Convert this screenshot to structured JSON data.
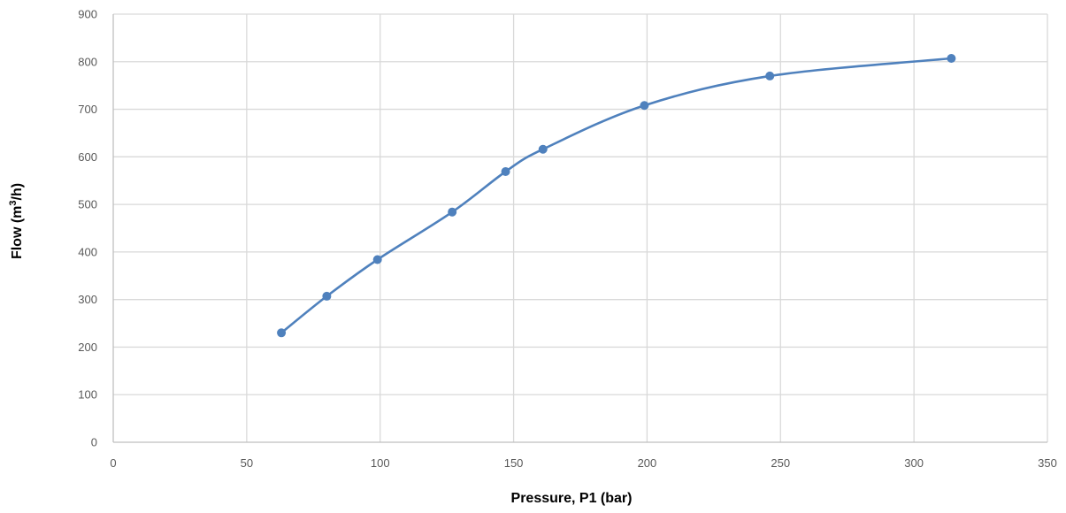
{
  "chart_data": {
    "type": "line",
    "title": "",
    "xlabel": "Pressure, P1 (bar)",
    "ylabel_prefix": "Flow (m",
    "ylabel_superscript": "3",
    "ylabel_suffix": "/h)",
    "xlim": [
      0,
      350
    ],
    "ylim": [
      0,
      900
    ],
    "x_ticks": [
      0,
      50,
      100,
      150,
      200,
      250,
      300,
      350
    ],
    "y_ticks": [
      0,
      100,
      200,
      300,
      400,
      500,
      600,
      700,
      800,
      900
    ],
    "grid": true,
    "legend": "none",
    "smooth": true,
    "series": [
      {
        "color": "#4f81bd",
        "x": [
          63,
          80,
          99,
          127,
          147,
          161,
          199,
          246,
          314
        ],
        "y": [
          230,
          307,
          384,
          484,
          569,
          616,
          708,
          770,
          807
        ]
      }
    ]
  }
}
